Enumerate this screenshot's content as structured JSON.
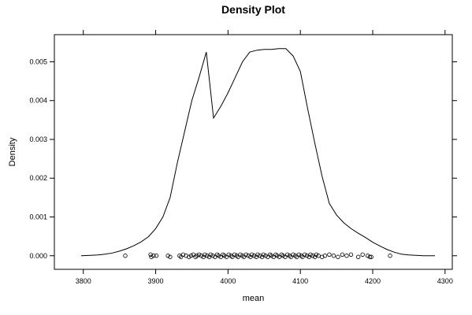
{
  "chart_data": {
    "type": "line",
    "title": "Density Plot",
    "xlabel": "mean",
    "ylabel": "Density",
    "xlim": [
      3760,
      4310
    ],
    "ylim": [
      -0.00035,
      0.0057
    ],
    "x_ticks": [
      3800,
      3900,
      4000,
      4100,
      4200,
      4300
    ],
    "x_tick_labels": [
      "3800",
      "3900",
      "4000",
      "4100",
      "4200",
      "4300"
    ],
    "y_ticks": [
      0.0,
      0.001,
      0.002,
      0.003,
      0.004,
      0.005
    ],
    "y_tick_labels": [
      "0.000",
      "0.001",
      "0.002",
      "0.003",
      "0.004",
      "0.005"
    ],
    "grid": false,
    "legend": "none",
    "series": [
      {
        "kind": "density-curve",
        "x": [
          3797,
          3810,
          3820,
          3830,
          3840,
          3850,
          3860,
          3870,
          3880,
          3890,
          3900,
          3910,
          3920,
          3930,
          3940,
          3950,
          3960,
          3970,
          3980,
          3990,
          4000,
          4010,
          4020,
          4030,
          4040,
          4050,
          4060,
          4070,
          4080,
          4090,
          4100,
          4110,
          4120,
          4130,
          4140,
          4150,
          4160,
          4170,
          4180,
          4190,
          4200,
          4210,
          4220,
          4230,
          4240,
          4250,
          4260,
          4270,
          4286
        ],
        "y": [
          0.0,
          1e-05,
          2e-05,
          4e-05,
          7e-05,
          0.00012,
          0.00018,
          0.00026,
          0.00036,
          0.00049,
          0.0007,
          0.001,
          0.0015,
          0.0024,
          0.0032,
          0.004,
          0.0046,
          0.00525,
          0.00355,
          0.00385,
          0.0042,
          0.0046,
          0.005,
          0.00525,
          0.0053,
          0.00532,
          0.00532,
          0.00534,
          0.00534,
          0.00515,
          0.00475,
          0.0038,
          0.0029,
          0.00205,
          0.00135,
          0.00105,
          0.00085,
          0.0007,
          0.00058,
          0.00047,
          0.00035,
          0.00025,
          0.00016,
          9e-05,
          4e-05,
          2e-05,
          1e-05,
          0.0,
          0.0
        ]
      },
      {
        "kind": "rug-points",
        "x": [
          3858,
          3893,
          3894,
          3897,
          3901,
          3917,
          3920,
          3933,
          3935,
          3938,
          3942,
          3946,
          3949,
          3952,
          3955,
          3957,
          3960,
          3963,
          3966,
          3968,
          3971,
          3974,
          3976,
          3979,
          3982,
          3985,
          3987,
          3990,
          3993,
          3995,
          3998,
          4001,
          4004,
          4006,
          4009,
          4012,
          4014,
          4017,
          4020,
          4022,
          4025,
          4028,
          4031,
          4033,
          4036,
          4039,
          4041,
          4044,
          4047,
          4049,
          4052,
          4055,
          4058,
          4060,
          4063,
          4066,
          4068,
          4071,
          4074,
          4076,
          4079,
          4082,
          4085,
          4087,
          4090,
          4093,
          4095,
          4098,
          4101,
          4103,
          4106,
          4109,
          4112,
          4114,
          4117,
          4120,
          4122,
          4125,
          4130,
          4134,
          4140,
          4146,
          4152,
          4158,
          4164,
          4170,
          4180,
          4186,
          4193,
          4196,
          4198,
          4224
        ],
        "y": [
          0,
          3e-05,
          -3e-05,
          0,
          0,
          0,
          -3e-05,
          0,
          -3e-05,
          3e-05,
          0,
          -3e-05,
          0,
          3e-05,
          -3e-05,
          0,
          3e-05,
          0,
          -3e-05,
          3e-05,
          0,
          -3e-05,
          3e-05,
          0,
          -3e-05,
          3e-05,
          0,
          -3e-05,
          3e-05,
          0,
          -3e-05,
          3e-05,
          0,
          -3e-05,
          3e-05,
          0,
          -3e-05,
          3e-05,
          0,
          -3e-05,
          3e-05,
          0,
          -3e-05,
          3e-05,
          0,
          -3e-05,
          3e-05,
          0,
          -3e-05,
          3e-05,
          0,
          -3e-05,
          3e-05,
          0,
          -3e-05,
          3e-05,
          0,
          -3e-05,
          3e-05,
          0,
          -3e-05,
          3e-05,
          0,
          -3e-05,
          3e-05,
          0,
          -3e-05,
          3e-05,
          0,
          -3e-05,
          3e-05,
          0,
          -3e-05,
          3e-05,
          0,
          -3e-05,
          3e-05,
          0,
          -3e-05,
          0,
          3e-05,
          0,
          -3e-05,
          3e-05,
          0,
          3e-05,
          -3e-05,
          3e-05,
          0,
          -3e-05,
          -3e-05,
          0
        ]
      }
    ]
  }
}
